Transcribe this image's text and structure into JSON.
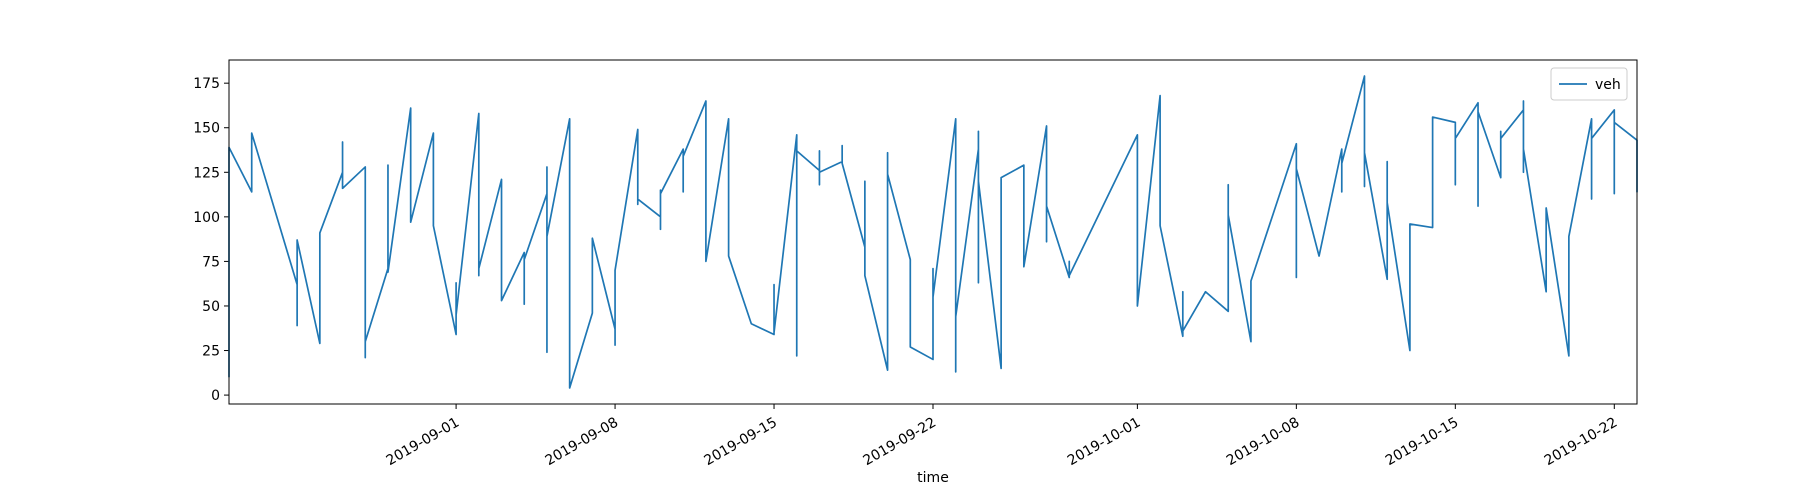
{
  "chart_data": {
    "type": "line",
    "xlabel": "time",
    "x": [
      "2019-08-22",
      "2019-08-22",
      "2019-08-23",
      "2019-08-23",
      "2019-08-23",
      "2019-08-25",
      "2019-08-25",
      "2019-08-25",
      "2019-08-26",
      "2019-08-26",
      "2019-08-26",
      "2019-08-26",
      "2019-08-27",
      "2019-08-27",
      "2019-08-27",
      "2019-08-27",
      "2019-08-28",
      "2019-08-28",
      "2019-08-28",
      "2019-08-29",
      "2019-08-29",
      "2019-08-29",
      "2019-08-30",
      "2019-08-30",
      "2019-08-30",
      "2019-08-30",
      "2019-08-31",
      "2019-08-31",
      "2019-09-01",
      "2019-09-01",
      "2019-09-01",
      "2019-09-02",
      "2019-09-02",
      "2019-09-02",
      "2019-09-02",
      "2019-09-03",
      "2019-09-03",
      "2019-09-03",
      "2019-09-03",
      "2019-09-04",
      "2019-09-04",
      "2019-09-04",
      "2019-09-05",
      "2019-09-05",
      "2019-09-05",
      "2019-09-05",
      "2019-09-06",
      "2019-09-06",
      "2019-09-06",
      "2019-09-06",
      "2019-09-07",
      "2019-09-07",
      "2019-09-08",
      "2019-09-08",
      "2019-09-08",
      "2019-09-08",
      "2019-09-08",
      "2019-09-09",
      "2019-09-09",
      "2019-09-09",
      "2019-09-09",
      "2019-09-10",
      "2019-09-10",
      "2019-09-10",
      "2019-09-10",
      "2019-09-11",
      "2019-09-11",
      "2019-09-11",
      "2019-09-12",
      "2019-09-12",
      "2019-09-13",
      "2019-09-13",
      "2019-09-14",
      "2019-09-15",
      "2019-09-15",
      "2019-09-15",
      "2019-09-16",
      "2019-09-16",
      "2019-09-16",
      "2019-09-17",
      "2019-09-17",
      "2019-09-17",
      "2019-09-17",
      "2019-09-18",
      "2019-09-18",
      "2019-09-18",
      "2019-09-19",
      "2019-09-19",
      "2019-09-19",
      "2019-09-20",
      "2019-09-20",
      "2019-09-20",
      "2019-09-21",
      "2019-09-21",
      "2019-09-22",
      "2019-09-22",
      "2019-09-22",
      "2019-09-22",
      "2019-09-23",
      "2019-09-23",
      "2019-09-23",
      "2019-09-24",
      "2019-09-24",
      "2019-09-24",
      "2019-09-24",
      "2019-09-25",
      "2019-09-25",
      "2019-09-25",
      "2019-09-25",
      "2019-09-26",
      "2019-09-26",
      "2019-09-27",
      "2019-09-27",
      "2019-09-27",
      "2019-09-28",
      "2019-09-28",
      "2019-09-28",
      "2019-10-01",
      "2019-10-01",
      "2019-10-01",
      "2019-10-02",
      "2019-10-02",
      "2019-10-02",
      "2019-10-02",
      "2019-10-03",
      "2019-10-03",
      "2019-10-03",
      "2019-10-04",
      "2019-10-05",
      "2019-10-05",
      "2019-10-05",
      "2019-10-06",
      "2019-10-06",
      "2019-10-06",
      "2019-10-08",
      "2019-10-08",
      "2019-10-08",
      "2019-10-08",
      "2019-10-09",
      "2019-10-10",
      "2019-10-10",
      "2019-10-10",
      "2019-10-11",
      "2019-10-11",
      "2019-10-11",
      "2019-10-11",
      "2019-10-12",
      "2019-10-12",
      "2019-10-12",
      "2019-10-12",
      "2019-10-13",
      "2019-10-13",
      "2019-10-13",
      "2019-10-14",
      "2019-10-14",
      "2019-10-14",
      "2019-10-14",
      "2019-10-15",
      "2019-10-15",
      "2019-10-15",
      "2019-10-16",
      "2019-10-16",
      "2019-10-16",
      "2019-10-17",
      "2019-10-17",
      "2019-10-17",
      "2019-10-18",
      "2019-10-18",
      "2019-10-18",
      "2019-10-18",
      "2019-10-19",
      "2019-10-19",
      "2019-10-19",
      "2019-10-20",
      "2019-10-20",
      "2019-10-20",
      "2019-10-20",
      "2019-10-21",
      "2019-10-21",
      "2019-10-21",
      "2019-10-22",
      "2019-10-22",
      "2019-10-22",
      "2019-10-23",
      "2019-10-23",
      "2019-10-23"
    ],
    "series": [
      {
        "name": "veh",
        "color": "#1f77b4",
        "values": [
          10,
          139,
          114,
          125,
          147,
          62,
          39,
          87,
          29,
          53,
          40,
          91,
          125,
          118,
          142,
          116,
          128,
          21,
          30,
          71,
          129,
          69,
          161,
          120,
          126,
          97,
          147,
          95,
          34,
          63,
          45,
          158,
          67,
          124,
          71,
          121,
          69,
          120,
          53,
          80,
          51,
          76,
          113,
          24,
          128,
          89,
          155,
          123,
          127,
          4,
          46,
          88,
          37,
          33,
          47,
          28,
          70,
          149,
          107,
          117,
          110,
          100,
          93,
          115,
          113,
          138,
          114,
          134,
          165,
          75,
          155,
          78,
          40,
          34,
          62,
          35,
          146,
          22,
          137,
          126,
          118,
          137,
          125,
          131,
          140,
          130,
          83,
          120,
          67,
          14,
          136,
          124,
          76,
          27,
          20,
          71,
          41,
          55,
          155,
          13,
          44,
          138,
          63,
          148,
          120,
          15,
          99,
          25,
          122,
          129,
          72,
          151,
          86,
          106,
          66,
          75,
          67,
          146,
          65,
          50,
          168,
          109,
          129,
          95,
          33,
          58,
          36,
          58,
          47,
          118,
          101,
          30,
          62,
          64,
          141,
          66,
          131,
          127,
          78,
          138,
          114,
          130,
          179,
          117,
          148,
          136,
          65,
          109,
          131,
          108,
          25,
          94,
          96,
          94,
          142,
          115,
          156,
          153,
          118,
          144,
          164,
          106,
          159,
          122,
          148,
          144,
          160,
          125,
          165,
          138,
          58,
          103,
          105,
          22,
          54,
          50,
          89,
          155,
          110,
          144,
          160,
          113,
          153,
          143,
          114,
          119
        ]
      }
    ],
    "xlim": [
      "2019-08-22",
      "2019-10-23"
    ],
    "xticks": [
      "2019-09-01",
      "2019-09-08",
      "2019-09-15",
      "2019-09-22",
      "2019-10-01",
      "2019-10-08",
      "2019-10-15",
      "2019-10-22"
    ],
    "ylim": [
      -5,
      188
    ],
    "yticks": [
      0,
      25,
      50,
      75,
      100,
      125,
      150,
      175
    ],
    "legend": "upper right"
  }
}
